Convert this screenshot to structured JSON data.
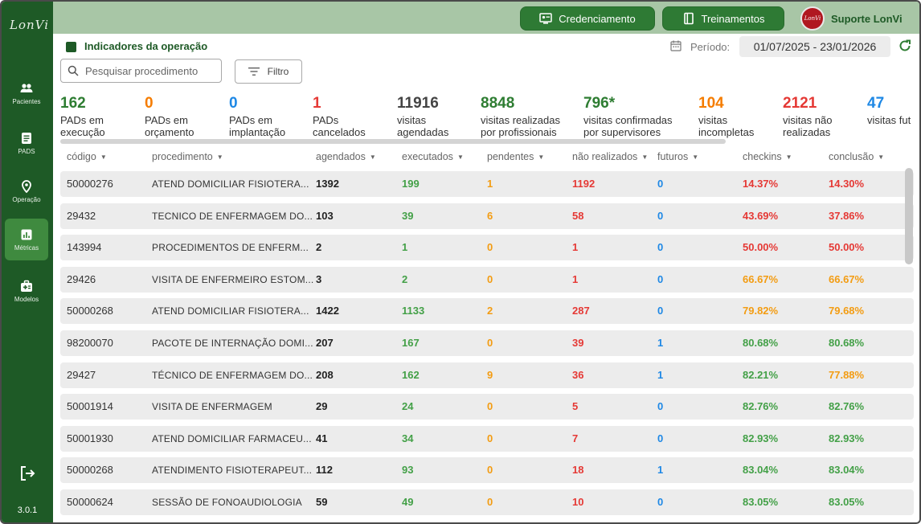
{
  "sidebar": {
    "logo": "LonVi",
    "items": [
      {
        "label": "Pacientes",
        "icon": "people-icon",
        "active": false
      },
      {
        "label": "PADS",
        "icon": "document-icon",
        "active": false
      },
      {
        "label": "Operação",
        "icon": "location-pin-icon",
        "active": false
      },
      {
        "label": "Métricas",
        "icon": "chart-icon",
        "active": true
      },
      {
        "label": "Modelos",
        "icon": "medical-kit-icon",
        "active": false
      }
    ],
    "logout_icon": "logout-icon",
    "version": "3.0.1"
  },
  "topbar": {
    "credenciamento": "Credenciamento",
    "treinamentos": "Treinamentos",
    "support_label": "Suporte LonVi",
    "avatar_text": "LonVi"
  },
  "header": {
    "title": "Indicadores da operação",
    "periodo_label": "Período:",
    "periodo_value": "01/07/2025 - 23/01/2026"
  },
  "search": {
    "placeholder": "Pesquisar procedimento"
  },
  "filter": {
    "label": "Filtro"
  },
  "colors": {
    "green": "#43a047",
    "orange": "#f39c12",
    "red": "#e53935",
    "blue": "#1e88e5",
    "brand": "#1e5a26"
  },
  "kpis": [
    {
      "value": "162",
      "label": "PADs em\nexecução",
      "color": "#2e7d32"
    },
    {
      "value": "0",
      "label": "PADs em\norçamento",
      "color": "#f57c00"
    },
    {
      "value": "0",
      "label": "PADs em\nimplantação",
      "color": "#1e88e5"
    },
    {
      "value": "1",
      "label": "PADs\ncancelados",
      "color": "#e53935"
    },
    {
      "value": "11916",
      "label": "visitas\nagendadas",
      "color": "#444444"
    },
    {
      "value": "8848",
      "label": "visitas realizadas\npor profissionais",
      "color": "#2e7d32"
    },
    {
      "value": "796*",
      "label": "visitas confirmadas\npor supervisores",
      "color": "#2e7d32"
    },
    {
      "value": "104",
      "label": "visitas\nincompletas",
      "color": "#f57c00"
    },
    {
      "value": "2121",
      "label": "visitas não\nrealizadas",
      "color": "#e53935"
    },
    {
      "value": "47",
      "label": "visitas fut",
      "color": "#1e88e5"
    }
  ],
  "table": {
    "headers": [
      "código",
      "procedimento",
      "agendados",
      "executados",
      "pendentes",
      "não realizados",
      "futuros",
      "checkins",
      "conclusão"
    ],
    "rows": [
      {
        "codigo": "50000276",
        "procedimento": "ATEND DOMICILIAR FISIOTERA...",
        "agendados": "1392",
        "executados": "199",
        "pendentes": "1",
        "nao_realizados": "1192",
        "futuros": "0",
        "checkins": "14.37%",
        "conclusao": "14.30%",
        "checkins_color": "#e53935",
        "conclusao_color": "#e53935"
      },
      {
        "codigo": "29432",
        "procedimento": "TECNICO DE ENFERMAGEM DO...",
        "agendados": "103",
        "executados": "39",
        "pendentes": "6",
        "nao_realizados": "58",
        "futuros": "0",
        "checkins": "43.69%",
        "conclusao": "37.86%",
        "checkins_color": "#e53935",
        "conclusao_color": "#e53935"
      },
      {
        "codigo": "143994",
        "procedimento": "PROCEDIMENTOS DE ENFERM...",
        "agendados": "2",
        "executados": "1",
        "pendentes": "0",
        "nao_realizados": "1",
        "futuros": "0",
        "checkins": "50.00%",
        "conclusao": "50.00%",
        "checkins_color": "#e53935",
        "conclusao_color": "#e53935"
      },
      {
        "codigo": "29426",
        "procedimento": "VISITA DE ENFERMEIRO ESTOM...",
        "agendados": "3",
        "executados": "2",
        "pendentes": "0",
        "nao_realizados": "1",
        "futuros": "0",
        "checkins": "66.67%",
        "conclusao": "66.67%",
        "checkins_color": "#f39c12",
        "conclusao_color": "#f39c12"
      },
      {
        "codigo": "50000268",
        "procedimento": "ATEND DOMICILIAR FISIOTERA...",
        "agendados": "1422",
        "executados": "1133",
        "pendentes": "2",
        "nao_realizados": "287",
        "futuros": "0",
        "checkins": "79.82%",
        "conclusao": "79.68%",
        "checkins_color": "#f39c12",
        "conclusao_color": "#f39c12"
      },
      {
        "codigo": "98200070",
        "procedimento": "PACOTE DE INTERNAÇÃO DOMI...",
        "agendados": "207",
        "executados": "167",
        "pendentes": "0",
        "nao_realizados": "39",
        "futuros": "1",
        "checkins": "80.68%",
        "conclusao": "80.68%",
        "checkins_color": "#43a047",
        "conclusao_color": "#43a047"
      },
      {
        "codigo": "29427",
        "procedimento": "TÉCNICO DE ENFERMAGEM DO...",
        "agendados": "208",
        "executados": "162",
        "pendentes": "9",
        "nao_realizados": "36",
        "futuros": "1",
        "checkins": "82.21%",
        "conclusao": "77.88%",
        "checkins_color": "#43a047",
        "conclusao_color": "#f39c12"
      },
      {
        "codigo": "50001914",
        "procedimento": "VISITA DE ENFERMAGEM",
        "agendados": "29",
        "executados": "24",
        "pendentes": "0",
        "nao_realizados": "5",
        "futuros": "0",
        "checkins": "82.76%",
        "conclusao": "82.76%",
        "checkins_color": "#43a047",
        "conclusao_color": "#43a047"
      },
      {
        "codigo": "50001930",
        "procedimento": "ATEND DOMICILIAR FARMACEU...",
        "agendados": "41",
        "executados": "34",
        "pendentes": "0",
        "nao_realizados": "7",
        "futuros": "0",
        "checkins": "82.93%",
        "conclusao": "82.93%",
        "checkins_color": "#43a047",
        "conclusao_color": "#43a047"
      },
      {
        "codigo": "50000268",
        "procedimento": "ATENDIMENTO FISIOTERAPEUT...",
        "agendados": "112",
        "executados": "93",
        "pendentes": "0",
        "nao_realizados": "18",
        "futuros": "1",
        "checkins": "83.04%",
        "conclusao": "83.04%",
        "checkins_color": "#43a047",
        "conclusao_color": "#43a047"
      },
      {
        "codigo": "50000624",
        "procedimento": "SESSÃO DE FONOAUDIOLOGIA",
        "agendados": "59",
        "executados": "49",
        "pendentes": "0",
        "nao_realizados": "10",
        "futuros": "0",
        "checkins": "83.05%",
        "conclusao": "83.05%",
        "checkins_color": "#43a047",
        "conclusao_color": "#43a047"
      }
    ]
  }
}
